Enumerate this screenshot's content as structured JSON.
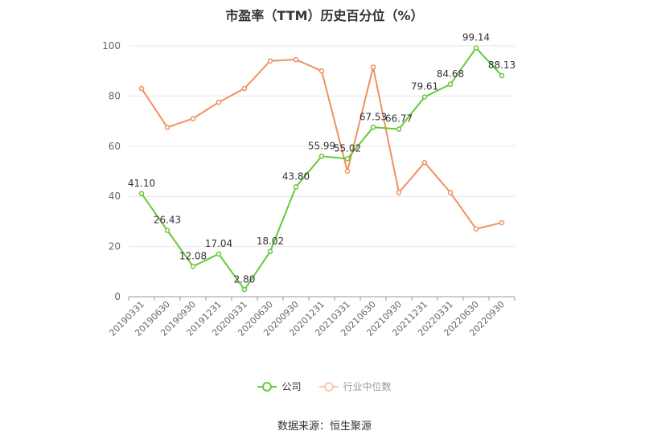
{
  "chart_data": {
    "type": "line",
    "title": "市盈率（TTM）历史百分位（%）",
    "categories": [
      "20190331",
      "20190630",
      "20190930",
      "20191231",
      "20200331",
      "20200630",
      "20200930",
      "20201231",
      "20210331",
      "20210630",
      "20210930",
      "20211231",
      "20220331",
      "20220630",
      "20220930"
    ],
    "series": [
      {
        "name": "公司",
        "color": "#66c93a",
        "values": [
          41.1,
          26.43,
          12.08,
          17.04,
          2.8,
          18.02,
          43.8,
          55.99,
          55.02,
          67.53,
          66.77,
          79.61,
          84.68,
          99.14,
          88.13
        ],
        "labels": [
          "41.10",
          "26.43",
          "12.08",
          "17.04",
          "2.80",
          "18.02",
          "43.80",
          "55.99",
          "55.02",
          "67.53",
          "66.77",
          "79.61",
          "84.68",
          "99.14",
          "88.13"
        ]
      },
      {
        "name": "行业中位数",
        "color": "#f0915f",
        "values": [
          83,
          67.5,
          71,
          77.5,
          83,
          94,
          94.5,
          90,
          50,
          91.5,
          41.5,
          53.5,
          41.5,
          27,
          29.5
        ]
      }
    ],
    "yticks": [
      "0",
      "20",
      "40",
      "60",
      "80",
      "100"
    ],
    "ylim": [
      0,
      105
    ],
    "legend_position": "bottom-center",
    "grid": true
  },
  "source_text": "数据来源：恒生聚源"
}
